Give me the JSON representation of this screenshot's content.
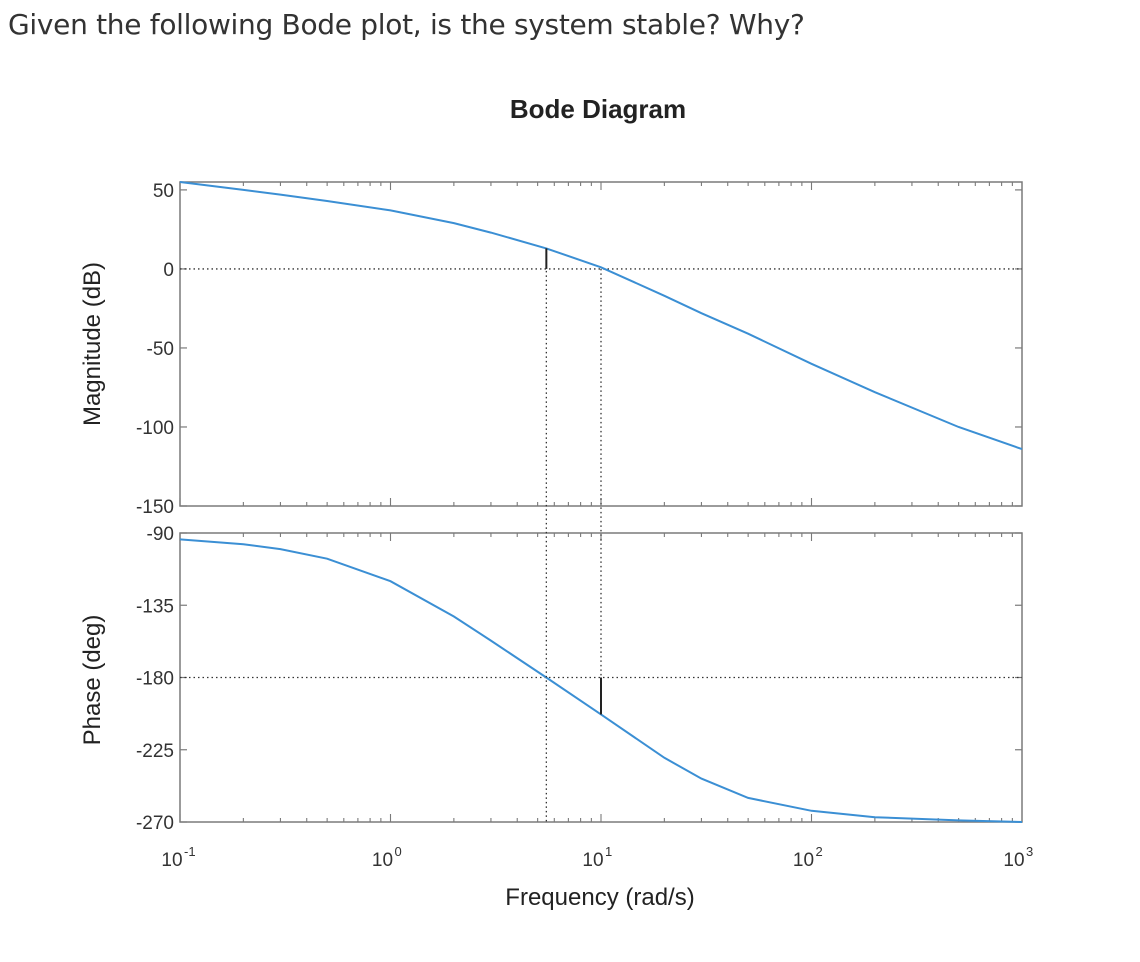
{
  "question": "Given the following Bode plot, is the system stable?  Why?",
  "chart_data": {
    "type": "line",
    "title": "Bode Diagram",
    "xlabel": "Frequency  (rad/s)",
    "xscale": "log",
    "xlim": [
      0.1,
      1000
    ],
    "x_ticks": [
      {
        "base": "10",
        "exp": "-1"
      },
      {
        "base": "10",
        "exp": "0"
      },
      {
        "base": "10",
        "exp": "1"
      },
      {
        "base": "10",
        "exp": "2"
      },
      {
        "base": "10",
        "exp": "3"
      }
    ],
    "line_color": "#3b8fd4",
    "grid": false,
    "panels": [
      {
        "name": "magnitude",
        "ylabel": "Magnitude (dB)",
        "ylim": [
          -150,
          55
        ],
        "yticks": [
          "50",
          "0",
          "-50",
          "-100",
          "-150"
        ],
        "reference_line": 0,
        "x": [
          0.1,
          0.2,
          0.3,
          0.5,
          1,
          2,
          3,
          5.5,
          10,
          20,
          30,
          50,
          100,
          200,
          500,
          1000
        ],
        "y": [
          55,
          50,
          47,
          43,
          37,
          29,
          23,
          13,
          1,
          -17,
          -28,
          -41,
          -60,
          -78,
          -100,
          -114
        ]
      },
      {
        "name": "phase",
        "ylabel": "Phase (deg)",
        "ylim": [
          -270,
          -90
        ],
        "yticks": [
          "-90",
          "-135",
          "-180",
          "-225",
          "-270"
        ],
        "reference_line": -180,
        "x": [
          0.1,
          0.2,
          0.3,
          0.5,
          1,
          2,
          3,
          5.5,
          10,
          20,
          30,
          50,
          100,
          200,
          500,
          1000
        ],
        "y": [
          -94,
          -97,
          -100,
          -106,
          -120,
          -142,
          -157,
          -180,
          -203,
          -230,
          -243,
          -255,
          -263,
          -267,
          -269,
          -270
        ]
      }
    ],
    "markers": {
      "phase_crossover_frequency": 5.5,
      "gain_margin_magnitude_db": 13,
      "gain_crossover_frequency": 10,
      "phase_at_gain_crossover": -203
    }
  }
}
